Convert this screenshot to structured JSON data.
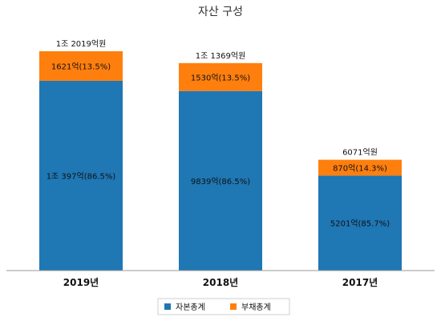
{
  "chart_data": {
    "type": "bar",
    "stacked": true,
    "title": "자산 구성",
    "categories": [
      "2019년",
      "2018년",
      "2017년"
    ],
    "totals": [
      12019,
      11369,
      6071
    ],
    "total_labels": [
      "1조 2019억원",
      "1조 1369억원",
      "6071억원"
    ],
    "series": [
      {
        "name": "자본총계",
        "color": "#1f77b4",
        "values": [
          10397,
          9839,
          5201
        ],
        "labels": [
          "1조 397억(86.5%)",
          "9839억(86.5%)",
          "5201억(85.7%)"
        ]
      },
      {
        "name": "부채총계",
        "color": "#ff7f0e",
        "values": [
          1621,
          1530,
          870
        ],
        "labels": [
          "1621억(13.5%)",
          "1530억(13.5%)",
          "870억(14.3%)"
        ]
      }
    ],
    "ylim": [
      0,
      12019
    ],
    "grid": false,
    "legend": "bottom"
  }
}
